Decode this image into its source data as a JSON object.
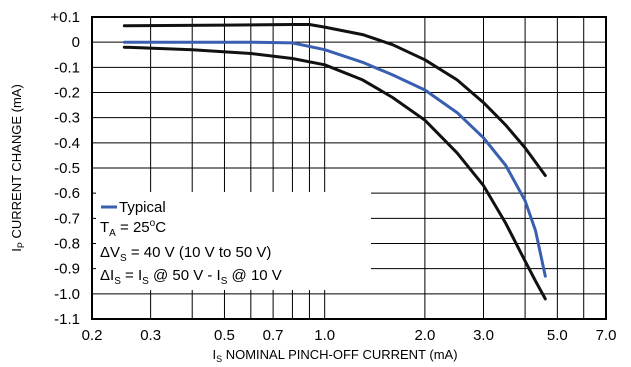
{
  "chart_data": {
    "type": "line",
    "xscale": "log",
    "xlim": [
      0.2,
      7.0
    ],
    "ylim": [
      -1.1,
      0.1
    ],
    "grid": true,
    "legend_position": "bottom-left",
    "xlabel": {
      "pre": "I",
      "sub": "S",
      "post": " NOMINAL PINCH-OFF CURRENT (mA)"
    },
    "ylabel": {
      "pre": "I",
      "sub": "P",
      "post": " CURRENT CHANGE (mA)"
    },
    "x_tick_labels": [
      {
        "value": 0.2,
        "label": "0.2"
      },
      {
        "value": 0.3,
        "label": "0.3"
      },
      {
        "value": 0.5,
        "label": "0.5"
      },
      {
        "value": 0.7,
        "label": "0.7"
      },
      {
        "value": 1.0,
        "label": "1.0"
      },
      {
        "value": 2.0,
        "label": "2.0"
      },
      {
        "value": 3.0,
        "label": "3.0"
      },
      {
        "value": 5.0,
        "label": "5.0"
      },
      {
        "value": 7.0,
        "label": "7.0"
      }
    ],
    "x_minor_grid": [
      0.4,
      0.6,
      0.8,
      0.9,
      4.0,
      6.0
    ],
    "y_tick_labels": [
      {
        "value": 0.1,
        "label": "+0.1"
      },
      {
        "value": 0.0,
        "label": "0"
      },
      {
        "value": -0.1,
        "label": "-0.1"
      },
      {
        "value": -0.2,
        "label": "-0.2"
      },
      {
        "value": -0.3,
        "label": "-0.3"
      },
      {
        "value": -0.4,
        "label": "-0.4"
      },
      {
        "value": -0.5,
        "label": "-0.5"
      },
      {
        "value": -0.6,
        "label": "-0.6"
      },
      {
        "value": -0.7,
        "label": "-0.7"
      },
      {
        "value": -0.8,
        "label": "-0.8"
      },
      {
        "value": -0.9,
        "label": "-0.9"
      },
      {
        "value": -1.0,
        "label": "-1.0"
      },
      {
        "value": -1.1,
        "label": "-1.1"
      }
    ],
    "series": [
      {
        "name": "Typical",
        "color": "#3a5fb0",
        "points": [
          [
            0.25,
            0.0
          ],
          [
            0.4,
            0.0
          ],
          [
            0.6,
            0.0
          ],
          [
            0.8,
            -0.003
          ],
          [
            1.0,
            -0.03
          ],
          [
            1.3,
            -0.08
          ],
          [
            1.6,
            -0.13
          ],
          [
            2.0,
            -0.19
          ],
          [
            2.5,
            -0.28
          ],
          [
            3.0,
            -0.38
          ],
          [
            3.5,
            -0.49
          ],
          [
            4.0,
            -0.63
          ],
          [
            4.3,
            -0.75
          ],
          [
            4.6,
            -0.93
          ]
        ]
      },
      {
        "color": "#111111",
        "points": [
          [
            0.25,
            0.065
          ],
          [
            0.5,
            0.068
          ],
          [
            0.8,
            0.07
          ],
          [
            0.9,
            0.07
          ],
          [
            1.0,
            0.06
          ],
          [
            1.3,
            0.03
          ],
          [
            1.6,
            -0.01
          ],
          [
            2.0,
            -0.07
          ],
          [
            2.5,
            -0.15
          ],
          [
            3.0,
            -0.24
          ],
          [
            3.5,
            -0.33
          ],
          [
            4.0,
            -0.42
          ],
          [
            4.6,
            -0.53
          ]
        ]
      },
      {
        "color": "#111111",
        "points": [
          [
            0.25,
            -0.02
          ],
          [
            0.4,
            -0.03
          ],
          [
            0.6,
            -0.045
          ],
          [
            0.8,
            -0.065
          ],
          [
            1.0,
            -0.09
          ],
          [
            1.3,
            -0.15
          ],
          [
            1.6,
            -0.22
          ],
          [
            2.0,
            -0.31
          ],
          [
            2.5,
            -0.44
          ],
          [
            3.0,
            -0.57
          ],
          [
            3.5,
            -0.72
          ],
          [
            4.0,
            -0.87
          ],
          [
            4.3,
            -0.95
          ],
          [
            4.6,
            -1.02
          ]
        ]
      }
    ],
    "legend": {
      "series_label": "Typical",
      "ta": {
        "pre": "T",
        "sub": "A",
        "mid": " = 25",
        "sup": "o",
        "post": "C"
      },
      "dvs": {
        "pre": "ΔV",
        "sub": "S",
        "post": " = 40 V (10 V to 50 V)"
      },
      "dis": {
        "p1": "ΔI",
        "s1": "S",
        "p2": " = I",
        "s2": "S",
        "p3": " @ 50 V - I",
        "s3": "S",
        "p4": " @ 10 V"
      }
    }
  }
}
